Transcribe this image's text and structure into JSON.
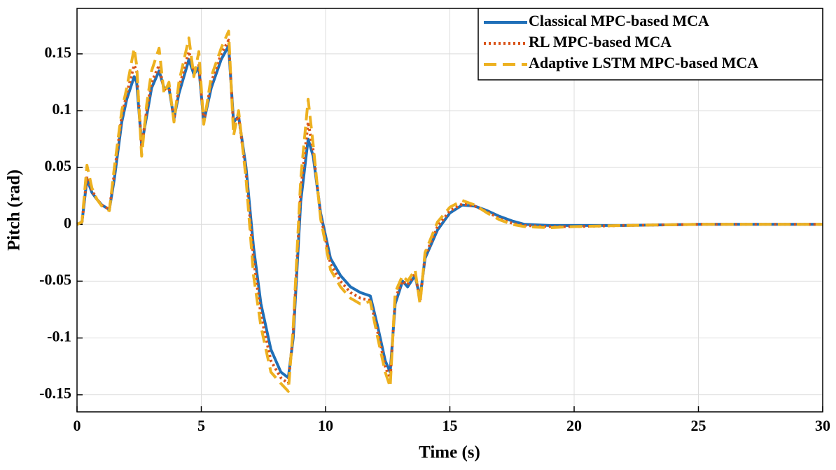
{
  "chart_data": {
    "type": "line",
    "xlabel": "Time (s)",
    "ylabel": "Pitch (rad)",
    "x": [
      0,
      0.2,
      0.4,
      0.6,
      0.8,
      1.0,
      1.3,
      1.5,
      1.8,
      2.0,
      2.3,
      2.4,
      2.6,
      2.8,
      3.0,
      3.3,
      3.5,
      3.7,
      3.9,
      4.1,
      4.5,
      4.7,
      4.9,
      5.1,
      5.4,
      5.8,
      6.1,
      6.3,
      6.5,
      6.8,
      7.1,
      7.4,
      7.8,
      8.2,
      8.5,
      8.7,
      9.0,
      9.3,
      9.5,
      9.8,
      10.2,
      10.6,
      11.0,
      11.4,
      11.8,
      12.1,
      12.4,
      12.6,
      12.8,
      13.1,
      13.3,
      13.6,
      13.8,
      14.0,
      14.5,
      15.0,
      15.5,
      16.0,
      16.5,
      17.0,
      17.5,
      18.0,
      19.0,
      20,
      22,
      25,
      30
    ],
    "series": [
      {
        "name": "Classical MPC-based MCA",
        "color": "#1f6fb8",
        "style": "solid",
        "values": [
          0,
          0.002,
          0.04,
          0.028,
          0.022,
          0.017,
          0.013,
          0.04,
          0.09,
          0.11,
          0.13,
          0.125,
          0.07,
          0.095,
          0.12,
          0.135,
          0.12,
          0.12,
          0.093,
          0.115,
          0.145,
          0.132,
          0.138,
          0.09,
          0.12,
          0.145,
          0.157,
          0.09,
          0.095,
          0.05,
          -0.02,
          -0.07,
          -0.11,
          -0.13,
          -0.135,
          -0.1,
          0.02,
          0.075,
          0.06,
          0.01,
          -0.03,
          -0.045,
          -0.055,
          -0.06,
          -0.063,
          -0.09,
          -0.12,
          -0.13,
          -0.07,
          -0.05,
          -0.055,
          -0.045,
          -0.065,
          -0.03,
          -0.005,
          0.01,
          0.017,
          0.016,
          0.012,
          0.007,
          0.003,
          0,
          -0.001,
          -0.001,
          -0.001,
          0,
          0
        ]
      },
      {
        "name": "RL MPC-based MCA",
        "color": "#d95319",
        "style": "dotted",
        "values": [
          0,
          0.002,
          0.042,
          0.03,
          0.022,
          0.017,
          0.013,
          0.045,
          0.095,
          0.115,
          0.14,
          0.135,
          0.068,
          0.1,
          0.125,
          0.14,
          0.118,
          0.122,
          0.092,
          0.12,
          0.152,
          0.135,
          0.14,
          0.09,
          0.125,
          0.15,
          0.162,
          0.085,
          0.095,
          0.045,
          -0.03,
          -0.08,
          -0.12,
          -0.135,
          -0.14,
          -0.095,
          0.03,
          0.09,
          0.065,
          0.008,
          -0.035,
          -0.05,
          -0.06,
          -0.065,
          -0.067,
          -0.095,
          -0.125,
          -0.137,
          -0.065,
          -0.05,
          -0.053,
          -0.043,
          -0.068,
          -0.028,
          -0.002,
          0.012,
          0.018,
          0.016,
          0.011,
          0.005,
          0.001,
          -0.001,
          -0.002,
          -0.002,
          -0.001,
          0,
          0
        ]
      },
      {
        "name": "Adaptive LSTM MPC-based MCA",
        "color": "#edb120",
        "style": "dashed",
        "values": [
          0,
          0.002,
          0.052,
          0.032,
          0.022,
          0.016,
          0.012,
          0.05,
          0.1,
          0.12,
          0.155,
          0.14,
          0.06,
          0.105,
          0.135,
          0.155,
          0.115,
          0.125,
          0.09,
          0.125,
          0.164,
          0.13,
          0.152,
          0.088,
          0.13,
          0.155,
          0.17,
          0.078,
          0.1,
          0.04,
          -0.045,
          -0.09,
          -0.13,
          -0.14,
          -0.147,
          -0.09,
          0.04,
          0.11,
          0.07,
          0.005,
          -0.04,
          -0.055,
          -0.065,
          -0.07,
          -0.068,
          -0.1,
          -0.13,
          -0.143,
          -0.06,
          -0.045,
          -0.05,
          -0.04,
          -0.07,
          -0.025,
          0.002,
          0.015,
          0.021,
          0.017,
          0.01,
          0.004,
          0,
          -0.002,
          -0.003,
          -0.002,
          -0.001,
          0,
          0
        ]
      }
    ],
    "xlim": [
      0,
      30
    ],
    "xticks": [
      0,
      5,
      10,
      15,
      20,
      25,
      30
    ],
    "ylim": [
      -0.165,
      0.19
    ],
    "yticks": [
      -0.15,
      -0.1,
      -0.05,
      0,
      0.05,
      0.1,
      0.15
    ],
    "grid": true,
    "legend": "upper right"
  }
}
